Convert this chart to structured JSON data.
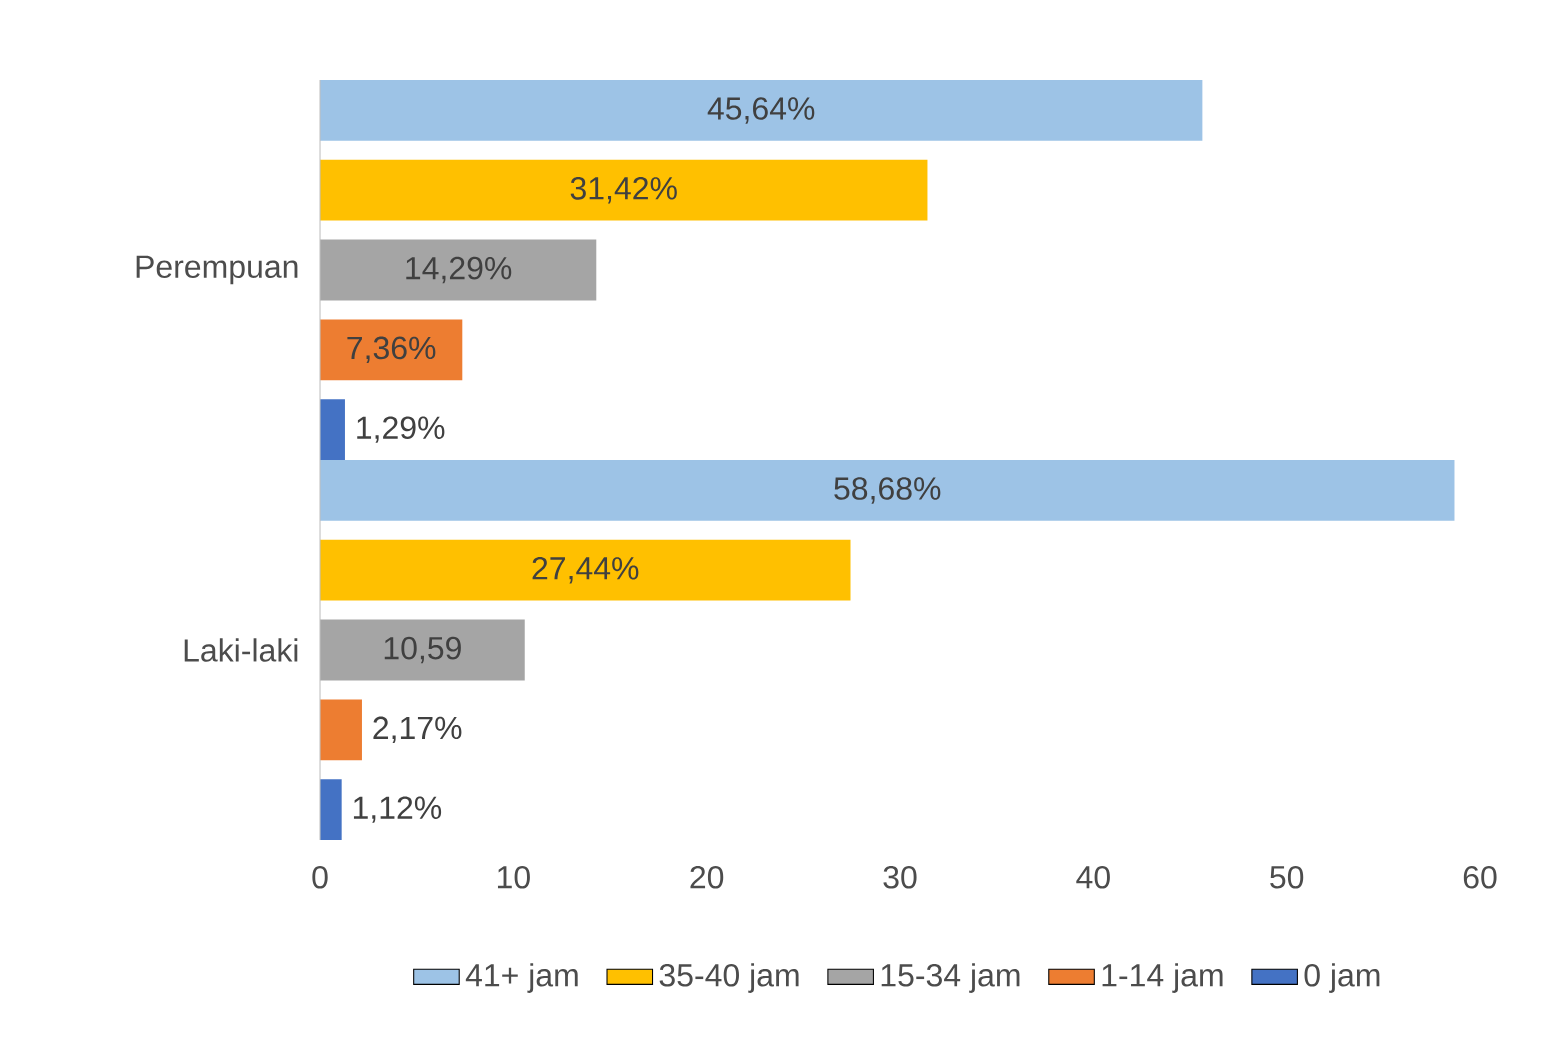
{
  "chart_data": {
    "type": "bar",
    "orientation": "horizontal",
    "categories": [
      "Perempuan",
      "Laki-laki"
    ],
    "series": [
      {
        "name": "41+ jam",
        "color": "#9dc3e6",
        "values": [
          45.64,
          58.68
        ],
        "value_labels": [
          "45,64%",
          "58,68%"
        ]
      },
      {
        "name": "35-40 jam",
        "color": "#ffc000",
        "values": [
          31.42,
          27.44
        ],
        "value_labels": [
          "31,42%",
          "27,44%"
        ]
      },
      {
        "name": "15-34 jam",
        "color": "#a5a5a5",
        "values": [
          14.29,
          10.59
        ],
        "value_labels": [
          "14,29%",
          "10,59"
        ]
      },
      {
        "name": "1-14 jam",
        "color": "#ed7d31",
        "values": [
          7.36,
          2.17
        ],
        "value_labels": [
          "7,36%",
          "2,17%"
        ]
      },
      {
        "name": "0 jam",
        "color": "#4472c4",
        "values": [
          1.29,
          1.12
        ],
        "value_labels": [
          "1,29%",
          "1,12%"
        ]
      }
    ],
    "xlim": [
      0,
      60
    ],
    "xticks": [
      0,
      10,
      20,
      30,
      40,
      50,
      60
    ],
    "legend": "bottom"
  }
}
